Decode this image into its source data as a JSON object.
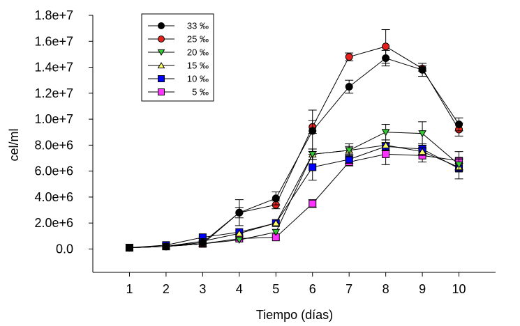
{
  "chart_data": {
    "type": "line",
    "title": "",
    "xlabel": "Tiempo (días)",
    "ylabel": "cel/ml",
    "xlim": [
      0,
      11
    ],
    "ylim": [
      -1800000,
      18000000
    ],
    "x_ticks": [
      "1",
      "2",
      "3",
      "4",
      "5",
      "6",
      "7",
      "8",
      "9",
      "10"
    ],
    "y_ticks": [
      "0.0",
      "2.0e+6",
      "4.0e+6",
      "6.0e+6",
      "8.0e+6",
      "1.0e+7",
      "1.2e+7",
      "1.4e+7",
      "1.6e+7",
      "1.8e+7"
    ],
    "x": [
      1,
      2,
      3,
      4,
      5,
      6,
      7,
      8,
      9,
      10
    ],
    "grid": false,
    "legend_position": "top-left",
    "series": [
      {
        "name": "33 ‰",
        "marker": "circle",
        "color": "#000000",
        "values": [
          100000,
          200000,
          500000,
          2800000,
          3900000,
          9100000,
          12500000,
          14700000,
          13800000,
          9600000
        ],
        "errors": [
          0,
          0,
          300000,
          1000000,
          500000,
          1600000,
          500000,
          600000,
          500000,
          500000
        ]
      },
      {
        "name": "25 ‰",
        "marker": "circle",
        "color": "#e3201b",
        "values": [
          100000,
          200000,
          400000,
          2800000,
          3400000,
          9400000,
          14800000,
          15600000,
          13900000,
          9200000
        ],
        "errors": [
          0,
          0,
          0,
          400000,
          300000,
          500000,
          300000,
          1300000,
          200000,
          500000
        ]
      },
      {
        "name": "20 ‰",
        "marker": "triangle-down",
        "color": "#33cc33",
        "values": [
          100000,
          200000,
          400000,
          700000,
          1300000,
          7300000,
          7600000,
          9000000,
          8900000,
          6500000
        ],
        "errors": [
          0,
          0,
          0,
          0,
          0,
          400000,
          500000,
          600000,
          900000,
          400000
        ]
      },
      {
        "name": "15 ‰",
        "marker": "triangle-up",
        "color": "#ffff66",
        "values": [
          100000,
          200000,
          600000,
          1200000,
          2000000,
          7300000,
          7600000,
          8000000,
          7500000,
          6300000
        ],
        "errors": [
          0,
          0,
          0,
          0,
          0,
          400000,
          300000,
          400000,
          300000,
          300000
        ]
      },
      {
        "name": "10 ‰",
        "marker": "square",
        "color": "#0000ff",
        "values": [
          100000,
          300000,
          900000,
          1300000,
          2000000,
          6300000,
          6900000,
          7900000,
          7700000,
          6200000
        ],
        "errors": [
          0,
          0,
          0,
          0,
          0,
          1000000,
          300000,
          300000,
          400000,
          800000
        ]
      },
      {
        "name": " 5 ‰",
        "marker": "square",
        "color": "#ff33ff",
        "values": [
          100000,
          200000,
          400000,
          800000,
          900000,
          3500000,
          6700000,
          7300000,
          7200000,
          6800000
        ],
        "errors": [
          0,
          0,
          0,
          0,
          0,
          300000,
          300000,
          800000,
          500000,
          700000
        ]
      }
    ]
  }
}
